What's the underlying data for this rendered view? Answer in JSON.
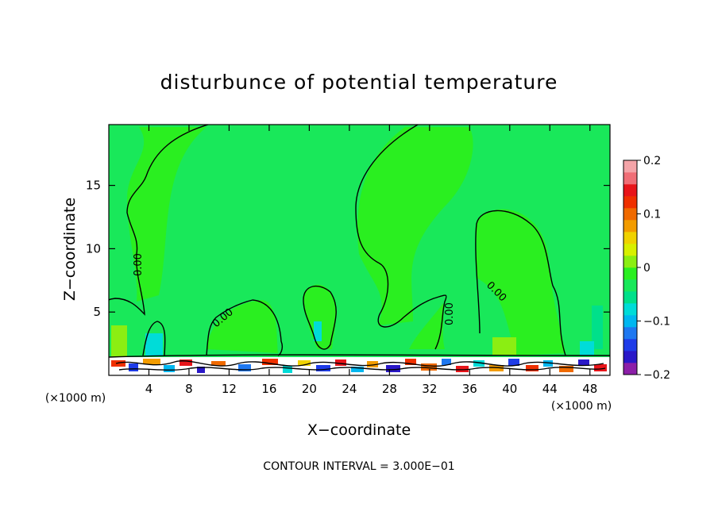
{
  "chart_data": {
    "type": "heatmap",
    "title": "disturbunce of potential temperature",
    "xlabel": "X−coordinate",
    "ylabel": "Z−coordinate",
    "x_unit_left": "(×1000 m)",
    "x_unit_right": "(×1000 m)",
    "xlim": [
      0,
      50
    ],
    "ylim": [
      0,
      19.8
    ],
    "x_ticks": [
      4,
      8,
      12,
      16,
      20,
      24,
      28,
      32,
      36,
      40,
      44,
      48
    ],
    "y_ticks": [
      5,
      10,
      15
    ],
    "contour_label": "0.00",
    "footer": "CONTOUR INTERVAL = 3.000E−01",
    "colorbar": {
      "range": [
        -0.2,
        0.2
      ],
      "tick_values": [
        0.2,
        0.1,
        0,
        -0.1,
        -0.2
      ],
      "tick_labels": [
        "0.2",
        "0.1",
        "0",
        "−0.1",
        "−0.2"
      ],
      "colors": [
        "#8c1fa8",
        "#2a18c8",
        "#1f3ce8",
        "#1f78f0",
        "#00b7f0",
        "#00dcd8",
        "#00e08a",
        "#19e85a",
        "#2aef20",
        "#8bee12",
        "#d8f000",
        "#f0d200",
        "#f39c00",
        "#f06a00",
        "#ef3000",
        "#e8151a",
        "#f06e76",
        "#f4a4a8"
      ]
    },
    "background_color": "#19e85a"
  }
}
